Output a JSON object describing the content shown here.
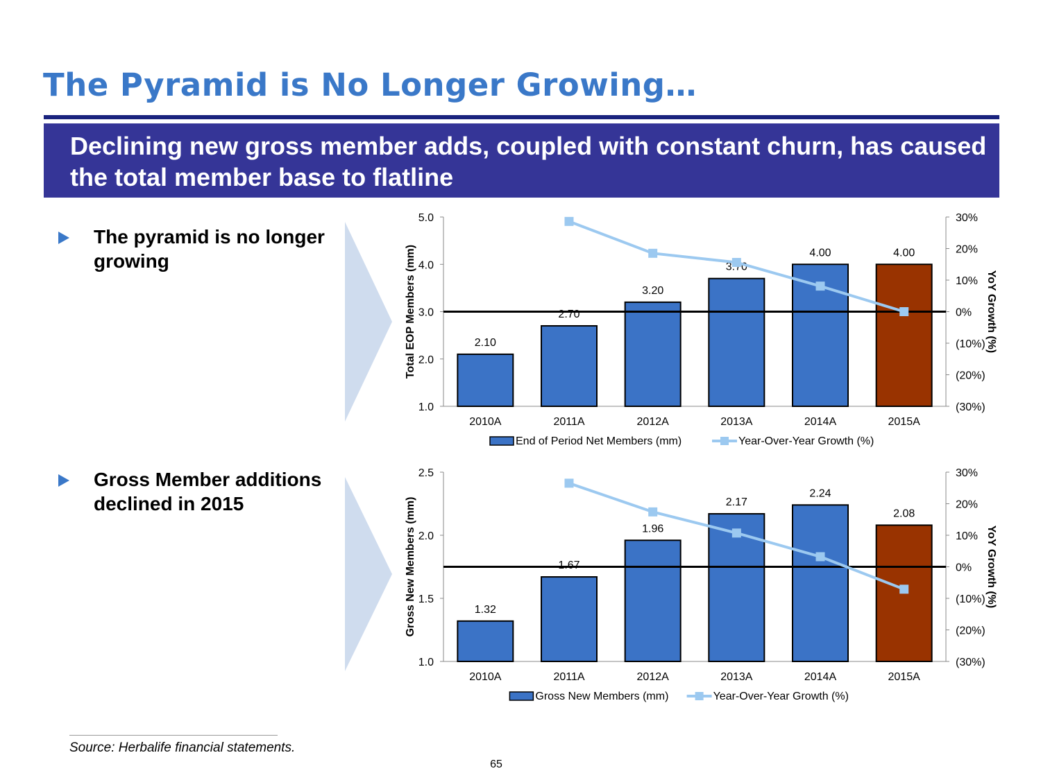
{
  "title": "The Pyramid is No Longer Growing…",
  "banner": "Declining new gross member adds, coupled with constant churn, has caused the total member base to flatline",
  "bullets": [
    "The pyramid is no longer growing",
    "Gross Member additions declined in 2015"
  ],
  "source": "Source: Herbalife financial statements.",
  "page_number": "65",
  "colors": {
    "bar": "#3b73c6",
    "bar_highlight": "#993300",
    "line": "#9cc9f0",
    "title": "#3a78c8",
    "banner": "#353597"
  },
  "chart_data": [
    {
      "type": "bar",
      "categories": [
        "2010A",
        "2011A",
        "2012A",
        "2013A",
        "2014A",
        "2015A"
      ],
      "values": [
        2.1,
        2.7,
        3.2,
        3.7,
        4.0,
        4.0
      ],
      "value_labels": [
        "2.10",
        "2.70",
        "3.20",
        "3.70",
        "4.00",
        "4.00"
      ],
      "highlight_index": 5,
      "ylabel": "Total EOP Members (mm)",
      "ylim": [
        1.0,
        5.0
      ],
      "yticks": [
        "1.0",
        "2.0",
        "3.0",
        "4.0",
        "5.0"
      ],
      "y2label": "YoY Growth (%)",
      "y2lim": [
        -30,
        30
      ],
      "y2ticks": [
        "(30%)",
        "(20%)",
        "(10%)",
        "0%",
        "10%",
        "20%",
        "30%"
      ],
      "growth": [
        null,
        28.6,
        18.5,
        15.6,
        8.1,
        0.0
      ],
      "legend": [
        "End of Period Net Members (mm)",
        "Year-Over-Year Growth (%)"
      ]
    },
    {
      "type": "bar",
      "categories": [
        "2010A",
        "2011A",
        "2012A",
        "2013A",
        "2014A",
        "2015A"
      ],
      "values": [
        1.32,
        1.67,
        1.96,
        2.17,
        2.24,
        2.08
      ],
      "value_labels": [
        "1.32",
        "1.67",
        "1.96",
        "2.17",
        "2.24",
        "2.08"
      ],
      "highlight_index": 5,
      "ylabel": "Gross New Members (mm)",
      "ylim": [
        1.0,
        2.5
      ],
      "yticks": [
        "1.0",
        "1.5",
        "2.0",
        "2.5"
      ],
      "y2label": "YoY Growth (%)",
      "y2lim": [
        -30,
        30
      ],
      "y2ticks": [
        "(30%)",
        "(20%)",
        "(10%)",
        "0%",
        "10%",
        "20%",
        "30%"
      ],
      "growth": [
        null,
        26.5,
        17.4,
        10.7,
        3.2,
        -7.1
      ],
      "legend": [
        "Gross New Members (mm)",
        "Year-Over-Year Growth (%)"
      ]
    }
  ]
}
